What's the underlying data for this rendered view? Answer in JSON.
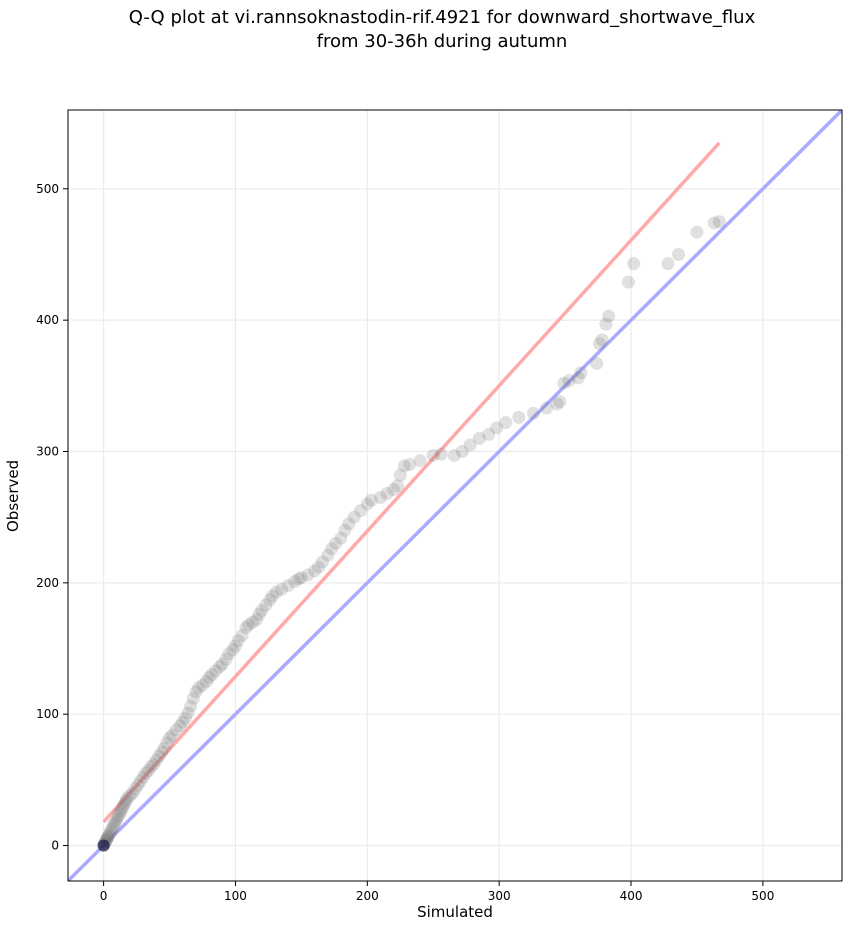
{
  "chart_data": {
    "type": "scatter",
    "title": "Q-Q plot at vi.rannsoknastodin-rif.4921 for downward_shortwave_flux\nfrom 30-36h during autumn",
    "xlabel": "Simulated",
    "ylabel": "Observed",
    "xlim": [
      -27,
      560
    ],
    "ylim": [
      -27,
      560
    ],
    "xticks": [
      0,
      100,
      200,
      300,
      400,
      500
    ],
    "yticks": [
      0,
      100,
      200,
      300,
      400,
      500
    ],
    "grid": true,
    "reference_lines": [
      {
        "name": "identity",
        "color": "#aaaaff",
        "points": [
          [
            -27,
            -27
          ],
          [
            560,
            560
          ]
        ]
      },
      {
        "name": "fit",
        "color": "#ffaaaa",
        "points": [
          [
            0,
            18
          ],
          [
            467,
            535
          ]
        ]
      }
    ],
    "points": [
      [
        0,
        0
      ],
      [
        0.5,
        1
      ],
      [
        1,
        2
      ],
      [
        1.5,
        3
      ],
      [
        2,
        4
      ],
      [
        2.5,
        5
      ],
      [
        3,
        6
      ],
      [
        3.5,
        7
      ],
      [
        4,
        8
      ],
      [
        5,
        10
      ],
      [
        6,
        12
      ],
      [
        7,
        14
      ],
      [
        8,
        16
      ],
      [
        9,
        18
      ],
      [
        10,
        20
      ],
      [
        11,
        22
      ],
      [
        12,
        24
      ],
      [
        13,
        26
      ],
      [
        14,
        28
      ],
      [
        15,
        30
      ],
      [
        16,
        32
      ],
      [
        17,
        34
      ],
      [
        18,
        36
      ],
      [
        20,
        38
      ],
      [
        22,
        40
      ],
      [
        24,
        43
      ],
      [
        26,
        46
      ],
      [
        28,
        49
      ],
      [
        30,
        52
      ],
      [
        32,
        55
      ],
      [
        34,
        57
      ],
      [
        36,
        60
      ],
      [
        38,
        62
      ],
      [
        40,
        65
      ],
      [
        42,
        68
      ],
      [
        44,
        71
      ],
      [
        46,
        74
      ],
      [
        48,
        78
      ],
      [
        50,
        82
      ],
      [
        52,
        84
      ],
      [
        55,
        88
      ],
      [
        58,
        91
      ],
      [
        60,
        94
      ],
      [
        62,
        97
      ],
      [
        64,
        101
      ],
      [
        66,
        106
      ],
      [
        68,
        112
      ],
      [
        70,
        117
      ],
      [
        72,
        120
      ],
      [
        75,
        122
      ],
      [
        78,
        125
      ],
      [
        80,
        128
      ],
      [
        82,
        130
      ],
      [
        85,
        133
      ],
      [
        88,
        136
      ],
      [
        90,
        138
      ],
      [
        93,
        142
      ],
      [
        95,
        146
      ],
      [
        98,
        149
      ],
      [
        100,
        152
      ],
      [
        102,
        156
      ],
      [
        105,
        160
      ],
      [
        108,
        166
      ],
      [
        110,
        168
      ],
      [
        113,
        170
      ],
      [
        116,
        172
      ],
      [
        118,
        176
      ],
      [
        120,
        179
      ],
      [
        123,
        183
      ],
      [
        126,
        187
      ],
      [
        128,
        190
      ],
      [
        131,
        193
      ],
      [
        135,
        195
      ],
      [
        140,
        198
      ],
      [
        145,
        201
      ],
      [
        148,
        203
      ],
      [
        150,
        204
      ],
      [
        155,
        206
      ],
      [
        160,
        209
      ],
      [
        163,
        212
      ],
      [
        166,
        216
      ],
      [
        170,
        221
      ],
      [
        173,
        226
      ],
      [
        176,
        230
      ],
      [
        180,
        234
      ],
      [
        183,
        240
      ],
      [
        186,
        245
      ],
      [
        190,
        250
      ],
      [
        195,
        255
      ],
      [
        200,
        260
      ],
      [
        203,
        263
      ],
      [
        210,
        265
      ],
      [
        215,
        268
      ],
      [
        220,
        271
      ],
      [
        223,
        274
      ],
      [
        225,
        282
      ],
      [
        228,
        289
      ],
      [
        232,
        290
      ],
      [
        240,
        293
      ],
      [
        250,
        297
      ],
      [
        256,
        298
      ],
      [
        266,
        297
      ],
      [
        272,
        300
      ],
      [
        278,
        305
      ],
      [
        285,
        310
      ],
      [
        292,
        313
      ],
      [
        298,
        318
      ],
      [
        305,
        322
      ],
      [
        315,
        326
      ],
      [
        326,
        329
      ],
      [
        336,
        333
      ],
      [
        344,
        336
      ],
      [
        346,
        338
      ],
      [
        349,
        352
      ],
      [
        353,
        354
      ],
      [
        360,
        356
      ],
      [
        362,
        360
      ],
      [
        374,
        367
      ],
      [
        376,
        382
      ],
      [
        378,
        385
      ],
      [
        381,
        397
      ],
      [
        383,
        403
      ],
      [
        398,
        429
      ],
      [
        402,
        443
      ],
      [
        428,
        443
      ],
      [
        436,
        450
      ],
      [
        450,
        467
      ],
      [
        463,
        474
      ],
      [
        467,
        475
      ]
    ]
  }
}
